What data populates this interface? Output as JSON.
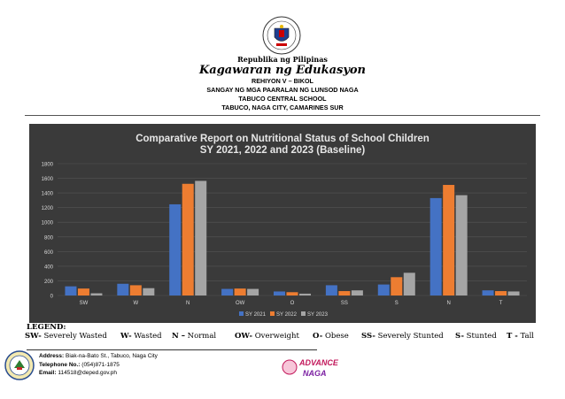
{
  "header": {
    "republika": "Republika ng Pilipinas",
    "kagawaran": "Kagawaran ng Edukasyon",
    "lines": [
      "REHIYON V – BIKOL",
      "SANGAY NG MGA PAARALAN NG LUNSOD NAGA",
      "TABUCO CENTRAL SCHOOL",
      "TABUCO, NAGA CITY, CAMARINES SUR"
    ]
  },
  "chart_data": {
    "type": "bar",
    "title": "Comparative Report on Nutritional Status of School Children",
    "subtitle": "SY 2021, 2022 and 2023 (Baseline)",
    "categories": [
      "SW",
      "W",
      "N",
      "OW",
      "O",
      "SS",
      "S",
      "N",
      "T"
    ],
    "series": [
      {
        "name": "SY 2021",
        "color": "#4472c4",
        "values": [
          125,
          160,
          1245,
          90,
          55,
          140,
          150,
          1330,
          70
        ]
      },
      {
        "name": "SY 2022",
        "color": "#ed7d31",
        "values": [
          95,
          140,
          1525,
          95,
          45,
          60,
          250,
          1510,
          60
        ]
      },
      {
        "name": "SY 2023",
        "color": "#a5a5a5",
        "values": [
          30,
          100,
          1565,
          90,
          25,
          70,
          310,
          1370,
          55
        ]
      }
    ],
    "yticks": [
      "1800",
      "1600",
      "1400",
      "1200",
      "1000",
      "800",
      "600",
      "400",
      "200",
      "0"
    ],
    "ylim": [
      0,
      1800
    ],
    "legend_position": "bottom",
    "grid": true,
    "background": "#3a3a3a"
  },
  "legend": {
    "title": "LEGEND:",
    "items": [
      {
        "abbr": "SW-",
        "text": " Severely Wasted"
      },
      {
        "abbr": "W-",
        "text": " Wasted"
      },
      {
        "abbr": "N –",
        "text": " Normal"
      },
      {
        "abbr": "OW-",
        "text": " Overweight"
      },
      {
        "abbr": "O-",
        "text": " Obese"
      },
      {
        "abbr": "SS-",
        "text": " Severely Stunted"
      },
      {
        "abbr": "S-",
        "text": " Stunted"
      },
      {
        "abbr": "T -",
        "text": " Tall"
      }
    ]
  },
  "footer": {
    "address_label": "Address:",
    "address": " Biak-na-Bato St., Tabuco, Naga City",
    "telephone_label": "Telephone No.:",
    "telephone": " (054)871-1875",
    "email_label": "Email:",
    "email": " 114518@deped.gov.ph",
    "logo_text": "ADVANCE",
    "logo_text2": "NAGA"
  },
  "icons": [
    "deped-seal-icon",
    "school-seal-icon",
    "advance-naga-logo-icon"
  ]
}
